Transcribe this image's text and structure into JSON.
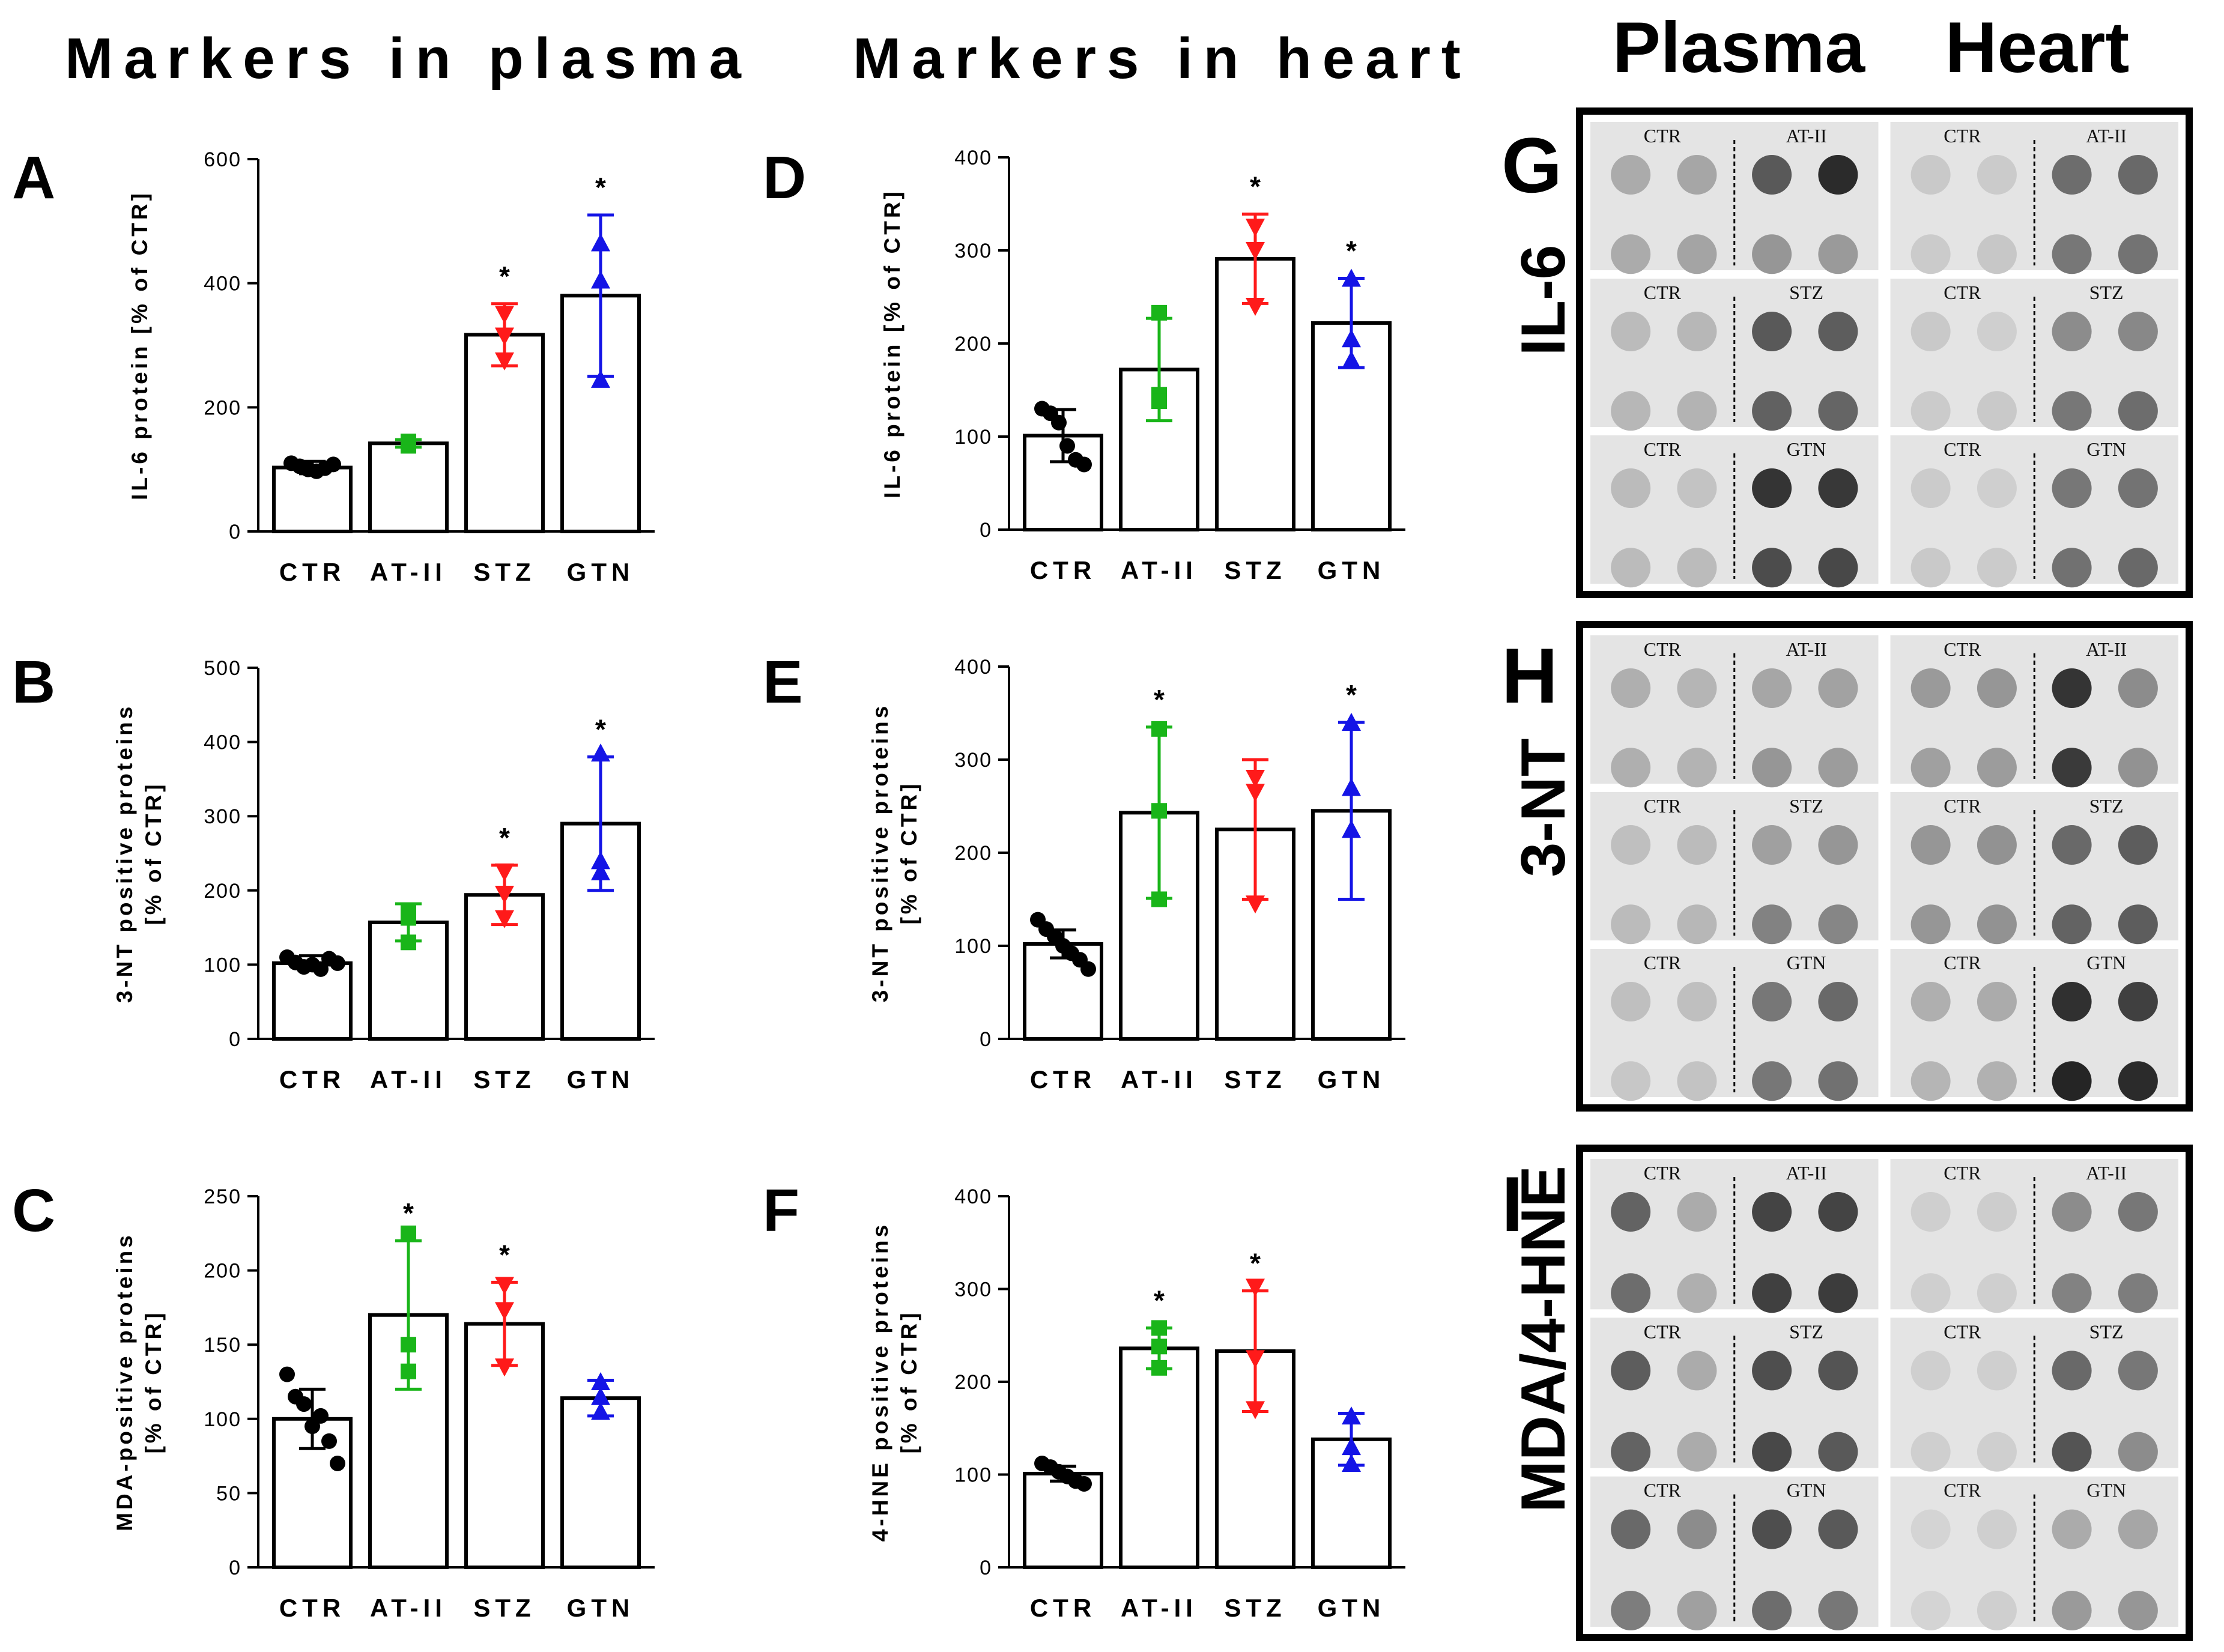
{
  "headers": {
    "plasma_markers": "Markers in plasma",
    "heart_markers": "Markers in heart",
    "blot_plasma": "Plasma",
    "blot_heart": "Heart"
  },
  "colors": {
    "CTR": "#000000",
    "AT-II": "#19b519",
    "STZ": "#ff1a1a",
    "GTN": "#1414e6"
  },
  "chart_data": [
    {
      "id": "A",
      "type": "bar",
      "ylabel": "IL-6 protein [% of CTR]",
      "categories": [
        "CTR",
        "AT-II",
        "STZ",
        "GTN"
      ],
      "yticks": [
        0,
        200,
        400,
        600
      ],
      "ylim": [
        0,
        600
      ],
      "series": [
        {
          "name": "CTR",
          "mean": 103,
          "sd": 10,
          "points": [
            110,
            105,
            100,
            97,
            102,
            108
          ],
          "marker": "circle",
          "star": false
        },
        {
          "name": "AT-II",
          "mean": 142,
          "sd": 6,
          "points": [
            145,
            138,
            142
          ],
          "marker": "square",
          "star": false
        },
        {
          "name": "STZ",
          "mean": 317,
          "sd": 50,
          "points": [
            350,
            315,
            275
          ],
          "marker": "triangle-down",
          "star": true
        },
        {
          "name": "GTN",
          "mean": 380,
          "sd": 130,
          "points": [
            465,
            405,
            245
          ],
          "marker": "triangle-up",
          "star": true
        }
      ]
    },
    {
      "id": "B",
      "type": "bar",
      "ylabel": "3-NT positive proteins|[% of CTR]",
      "categories": [
        "CTR",
        "AT-II",
        "STZ",
        "GTN"
      ],
      "yticks": [
        0,
        100,
        200,
        300,
        400,
        500
      ],
      "ylim": [
        0,
        500
      ],
      "series": [
        {
          "name": "CTR",
          "mean": 102,
          "sd": 10,
          "points": [
            110,
            103,
            97,
            100,
            94,
            108,
            102
          ],
          "marker": "circle",
          "star": false
        },
        {
          "name": "AT-II",
          "mean": 157,
          "sd": 25,
          "points": [
            170,
            163,
            130
          ],
          "marker": "square",
          "star": false
        },
        {
          "name": "STZ",
          "mean": 194,
          "sd": 40,
          "points": [
            225,
            195,
            162
          ],
          "marker": "triangle-down",
          "star": true
        },
        {
          "name": "GTN",
          "mean": 290,
          "sd": 90,
          "points": [
            385,
            240,
            225
          ],
          "marker": "triangle-up",
          "star": true
        }
      ]
    },
    {
      "id": "C",
      "type": "bar",
      "ylabel": "MDA-positive proteins|[% of CTR]",
      "categories": [
        "CTR",
        "AT-II",
        "STZ",
        "GTN"
      ],
      "yticks": [
        0,
        50,
        100,
        150,
        200,
        250
      ],
      "ylim": [
        0,
        250
      ],
      "series": [
        {
          "name": "CTR",
          "mean": 100,
          "sd": 20,
          "points": [
            130,
            115,
            110,
            95,
            102,
            85,
            70
          ],
          "marker": "circle",
          "star": false
        },
        {
          "name": "AT-II",
          "mean": 170,
          "sd": 50,
          "points": [
            225,
            150,
            132
          ],
          "marker": "square",
          "star": true
        },
        {
          "name": "STZ",
          "mean": 164,
          "sd": 28,
          "points": [
            190,
            173,
            135
          ],
          "marker": "triangle-down",
          "star": true
        },
        {
          "name": "GTN",
          "mean": 114,
          "sd": 12,
          "points": [
            125,
            115,
            105
          ],
          "marker": "triangle-up",
          "star": false
        }
      ]
    },
    {
      "id": "D",
      "type": "bar",
      "ylabel": "IL-6 protein [% of CTR]",
      "categories": [
        "CTR",
        "AT-II",
        "STZ",
        "GTN"
      ],
      "yticks": [
        0,
        100,
        200,
        300,
        400
      ],
      "ylim": [
        0,
        400
      ],
      "series": [
        {
          "name": "CTR",
          "mean": 101,
          "sd": 28,
          "points": [
            130,
            125,
            115,
            90,
            75,
            70
          ],
          "marker": "circle",
          "star": false
        },
        {
          "name": "AT-II",
          "mean": 172,
          "sd": 55,
          "points": [
            233,
            145,
            138
          ],
          "marker": "square",
          "star": false
        },
        {
          "name": "STZ",
          "mean": 291,
          "sd": 48,
          "points": [
            325,
            300,
            240
          ],
          "marker": "triangle-down",
          "star": true
        },
        {
          "name": "GTN",
          "mean": 222,
          "sd": 48,
          "points": [
            270,
            205,
            182
          ],
          "marker": "triangle-up",
          "star": true
        }
      ]
    },
    {
      "id": "E",
      "type": "bar",
      "ylabel": "3-NT positive proteins|[% of CTR]",
      "categories": [
        "CTR",
        "AT-II",
        "STZ",
        "GTN"
      ],
      "yticks": [
        0,
        100,
        200,
        300,
        400
      ],
      "ylim": [
        0,
        400
      ],
      "series": [
        {
          "name": "CTR",
          "mean": 102,
          "sd": 15,
          "points": [
            128,
            118,
            110,
            100,
            92,
            85,
            75
          ],
          "marker": "circle",
          "star": false
        },
        {
          "name": "AT-II",
          "mean": 243,
          "sd": 92,
          "points": [
            333,
            245,
            150
          ],
          "marker": "square",
          "star": true
        },
        {
          "name": "STZ",
          "mean": 225,
          "sd": 75,
          "points": [
            280,
            265,
            145
          ],
          "marker": "triangle-down",
          "star": false
        },
        {
          "name": "GTN",
          "mean": 245,
          "sd": 95,
          "points": [
            340,
            270,
            225
          ],
          "marker": "triangle-up",
          "star": true
        }
      ]
    },
    {
      "id": "F",
      "type": "bar",
      "ylabel": "4-HNE positive proteins|[% of CTR]",
      "categories": [
        "CTR",
        "AT-II",
        "STZ",
        "GTN"
      ],
      "yticks": [
        0,
        100,
        200,
        300,
        400
      ],
      "ylim": [
        0,
        400
      ],
      "series": [
        {
          "name": "CTR",
          "mean": 101,
          "sd": 8,
          "points": [
            112,
            108,
            103,
            98,
            93,
            90
          ],
          "marker": "circle",
          "star": false
        },
        {
          "name": "AT-II",
          "mean": 236,
          "sd": 22,
          "points": [
            258,
            238,
            215
          ],
          "marker": "square",
          "star": true
        },
        {
          "name": "STZ",
          "mean": 233,
          "sd": 65,
          "points": [
            302,
            225,
            170
          ],
          "marker": "triangle-down",
          "star": true
        },
        {
          "name": "GTN",
          "mean": 138,
          "sd": 28,
          "points": [
            163,
            130,
            112
          ],
          "marker": "triangle-up",
          "star": false
        }
      ]
    }
  ],
  "blots": [
    {
      "id": "G",
      "marker": "IL-6",
      "rows": [
        {
          "plasma_labels": [
            "CTR",
            "AT-II"
          ],
          "heart_labels": [
            "CTR",
            "AT-II"
          ],
          "plasma_dots": [
            [
              0.3,
              0.32,
              0.7,
              0.92
            ],
            [
              0.3,
              0.33,
              0.4,
              0.38
            ]
          ],
          "heart_dots": [
            [
              0.15,
              0.14,
              0.6,
              0.62
            ],
            [
              0.14,
              0.16,
              0.55,
              0.57
            ]
          ]
        },
        {
          "plasma_labels": [
            "CTR",
            "STZ"
          ],
          "heart_labels": [
            "CTR",
            "STZ"
          ],
          "plasma_dots": [
            [
              0.22,
              0.24,
              0.7,
              0.68
            ],
            [
              0.24,
              0.26,
              0.66,
              0.64
            ]
          ],
          "heart_dots": [
            [
              0.15,
              0.12,
              0.45,
              0.47
            ],
            [
              0.14,
              0.15,
              0.55,
              0.6
            ]
          ]
        },
        {
          "plasma_labels": [
            "CTR",
            "GTN"
          ],
          "heart_labels": [
            "CTR",
            "GTN"
          ],
          "plasma_dots": [
            [
              0.22,
              0.18,
              0.88,
              0.86
            ],
            [
              0.22,
              0.22,
              0.76,
              0.78
            ]
          ],
          "heart_dots": [
            [
              0.14,
              0.12,
              0.55,
              0.57
            ],
            [
              0.15,
              0.14,
              0.58,
              0.62
            ]
          ]
        }
      ]
    },
    {
      "id": "H",
      "marker": "3-NT",
      "rows": [
        {
          "plasma_labels": [
            "CTR",
            "AT-II"
          ],
          "heart_labels": [
            "CTR",
            "AT-II"
          ],
          "plasma_dots": [
            [
              0.28,
              0.25,
              0.32,
              0.34
            ],
            [
              0.28,
              0.26,
              0.4,
              0.37
            ]
          ],
          "heart_dots": [
            [
              0.38,
              0.4,
              0.88,
              0.45
            ],
            [
              0.35,
              0.37,
              0.85,
              0.42
            ]
          ]
        },
        {
          "plasma_labels": [
            "CTR",
            "STZ"
          ],
          "heart_labels": [
            "CTR",
            "STZ"
          ],
          "plasma_dots": [
            [
              0.2,
              0.22,
              0.35,
              0.4
            ],
            [
              0.22,
              0.24,
              0.5,
              0.48
            ]
          ],
          "heart_dots": [
            [
              0.4,
              0.42,
              0.62,
              0.68
            ],
            [
              0.4,
              0.42,
              0.65,
              0.68
            ]
          ]
        },
        {
          "plasma_labels": [
            "CTR",
            "GTN"
          ],
          "heart_labels": [
            "CTR",
            "GTN"
          ],
          "plasma_dots": [
            [
              0.2,
              0.2,
              0.55,
              0.62
            ],
            [
              0.16,
              0.18,
              0.55,
              0.58
            ]
          ],
          "heart_dots": [
            [
              0.28,
              0.3,
              0.9,
              0.82
            ],
            [
              0.25,
              0.27,
              0.95,
              0.92
            ]
          ]
        }
      ]
    },
    {
      "id": "I",
      "marker": "MDA/4-HNE",
      "rows": [
        {
          "plasma_labels": [
            "CTR",
            "AT-II"
          ],
          "heart_labels": [
            "CTR",
            "AT-II"
          ],
          "plasma_dots": [
            [
              0.65,
              0.3,
              0.8,
              0.8
            ],
            [
              0.6,
              0.28,
              0.82,
              0.84
            ]
          ],
          "heart_dots": [
            [
              0.12,
              0.13,
              0.45,
              0.55
            ],
            [
              0.12,
              0.12,
              0.5,
              0.52
            ]
          ]
        },
        {
          "plasma_labels": [
            "CTR",
            "STZ"
          ],
          "heart_labels": [
            "CTR",
            "STZ"
          ],
          "plasma_dots": [
            [
              0.68,
              0.3,
              0.75,
              0.72
            ],
            [
              0.65,
              0.3,
              0.78,
              0.7
            ]
          ],
          "heart_dots": [
            [
              0.12,
              0.12,
              0.62,
              0.55
            ],
            [
              0.12,
              0.12,
              0.72,
              0.45
            ]
          ]
        },
        {
          "plasma_labels": [
            "CTR",
            "GTN"
          ],
          "heart_labels": [
            "CTR",
            "GTN"
          ],
          "plasma_dots": [
            [
              0.62,
              0.45,
              0.75,
              0.7
            ],
            [
              0.52,
              0.35,
              0.6,
              0.55
            ]
          ],
          "heart_dots": [
            [
              0.1,
              0.12,
              0.3,
              0.32
            ],
            [
              0.1,
              0.12,
              0.38,
              0.4
            ]
          ]
        }
      ]
    }
  ]
}
